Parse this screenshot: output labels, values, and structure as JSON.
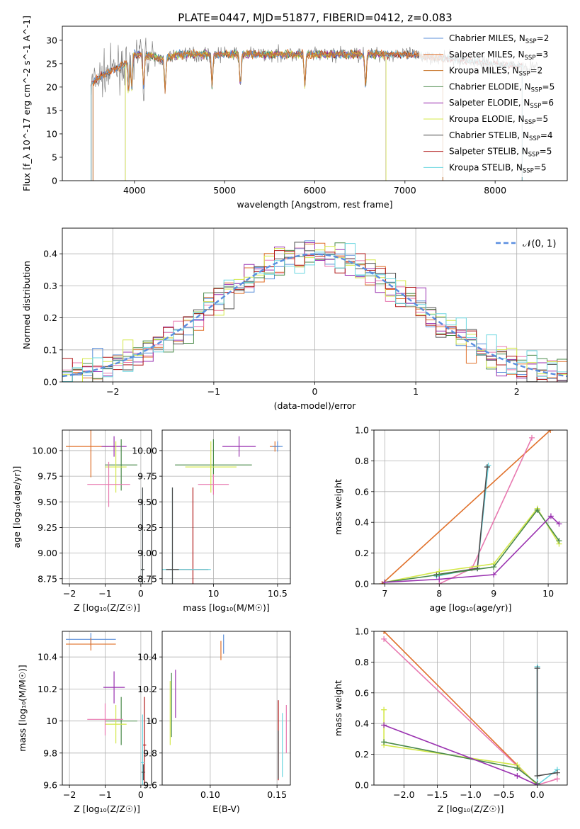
{
  "figure_title": "PLATE=0447, MJD=51877, FIBERID=0412, z=0.083",
  "colors": {
    "chabrier_miles": "#5b8fd9",
    "salpeter_miles": "#e0702a",
    "kroupa_miles": "#c8762b",
    "chabrier_elodie": "#4a8a4a",
    "salpeter_elodie": "#9a32b0",
    "kroupa_elodie": "#d4e84a",
    "chabrier_stelib": "#4d4d4d",
    "salpeter_stelib": "#b01818",
    "kroupa_stelib": "#6ad6e0",
    "pink": "#e879b0",
    "lime": "#a8e060",
    "normal": "#5a8ee0",
    "grid": "#b0b0b0"
  },
  "chart_data": [
    {
      "type": "line",
      "title": "PLATE=0447, MJD=51877, FIBERID=0412, z=0.083",
      "xlabel": "wavelength [Angstrom, rest frame]",
      "ylabel": "Flux [f_λ 10^-17 erg cm^-2 s^-1 A^-1]",
      "xlim": [
        3200,
        8800
      ],
      "ylim": [
        0,
        33
      ],
      "xticks": [
        4000,
        5000,
        6000,
        7000,
        8000
      ],
      "yticks": [
        0,
        5,
        10,
        15,
        20,
        25,
        30
      ],
      "grid": false,
      "legend_position": "top-right",
      "legend": [
        {
          "label": "Chabrier MILES, N",
          "sub": "SSP",
          "n": "=2",
          "color_key": "chabrier_miles"
        },
        {
          "label": "Salpeter MILES, N",
          "sub": "SSP",
          "n": "=3",
          "color_key": "salpeter_miles"
        },
        {
          "label": "Kroupa MILES, N",
          "sub": "SSP",
          "n": "=2",
          "color_key": "kroupa_miles"
        },
        {
          "label": "Chabrier ELODIE, N",
          "sub": "SSP",
          "n": "=5",
          "color_key": "chabrier_elodie"
        },
        {
          "label": "Salpeter ELODIE, N",
          "sub": "SSP",
          "n": "=6",
          "color_key": "salpeter_elodie"
        },
        {
          "label": "Kroupa ELODIE, N",
          "sub": "SSP",
          "n": "=5",
          "color_key": "kroupa_elodie"
        },
        {
          "label": "Chabrier STELIB, N",
          "sub": "SSP",
          "n": "=4",
          "color_key": "chabrier_stelib"
        },
        {
          "label": "Salpeter STELIB, N",
          "sub": "SSP",
          "n": "=5",
          "color_key": "salpeter_stelib"
        },
        {
          "label": "Kroupa STELIB, N",
          "sub": "SSP",
          "n": "=5",
          "color_key": "kroupa_stelib"
        }
      ],
      "spectrum_envelope": {
        "x": [
          3500,
          3600,
          3700,
          3800,
          3900,
          4000,
          4100,
          4300,
          4500,
          5000,
          5500,
          6000,
          6500,
          7000,
          7500,
          8000,
          8500
        ],
        "y": [
          20,
          22,
          23,
          24,
          25,
          27,
          27,
          26,
          27,
          27,
          27,
          27,
          27,
          27,
          26,
          25,
          24
        ]
      },
      "model_cutoffs": {
        "miles_min": 3540,
        "miles_max": 7420,
        "elodie_min": 3900,
        "elodie_max": 6790,
        "stelib_min": 3200,
        "stelib_max": 8800
      }
    },
    {
      "type": "line",
      "xlabel": "(data-model)/error",
      "ylabel": "Normed distribution",
      "xlim": [
        -2.5,
        2.5
      ],
      "ylim": [
        0,
        0.48
      ],
      "xticks": [
        -2,
        -1,
        0,
        1,
        2
      ],
      "yticks": [
        0.0,
        0.1,
        0.2,
        0.3,
        0.4
      ],
      "grid": true,
      "legend_position": "top-right",
      "legend": [
        {
          "label": "𝒩(0, 1)",
          "style": "dashed"
        }
      ],
      "series": [
        {
          "name": "Normal",
          "mean": 0,
          "sigma": 1
        }
      ],
      "histogram_bin_width": 0.1
    },
    {
      "type": "scatter",
      "xlabel": "Z [log₁₀(Z/Z☉)]",
      "ylabel": "age  [log₁₀(age/yr)]",
      "xlim": [
        -2.2,
        0.3
      ],
      "ylim": [
        8.7,
        10.2
      ],
      "xticks": [
        -2,
        -1,
        0
      ],
      "yticks": [
        8.75,
        9.0,
        9.25,
        9.5,
        9.75,
        10.0
      ],
      "ytick_labels": [
        "8.75",
        "9.00",
        "9.25",
        "9.50",
        "9.75",
        "10.00"
      ],
      "errorbars": [
        {
          "color_key": "salpeter_miles",
          "x": -1.4,
          "xerr": 0.7,
          "y": 10.04,
          "yerr": 0.3
        },
        {
          "color_key": "salpeter_elodie",
          "x": -0.75,
          "xerr": 0.35,
          "y": 10.04,
          "yerr": 0.1
        },
        {
          "color_key": "chabrier_elodie",
          "x": -0.55,
          "xerr": 0.45,
          "y": 9.86,
          "yerr": 0.25
        },
        {
          "color_key": "kroupa_elodie",
          "x": -0.7,
          "xerr": 0.3,
          "y": 9.84,
          "yerr": 0.25
        },
        {
          "color_key": "pink",
          "x": -0.9,
          "xerr": 0.6,
          "y": 9.67,
          "yerr": 0.22
        },
        {
          "color_key": "kroupa_stelib",
          "x": 0.05,
          "xerr": 0.05,
          "y": 8.84,
          "yerr": 0.8
        },
        {
          "color_key": "chabrier_stelib",
          "x": 0.05,
          "xerr": 0.05,
          "y": 8.84,
          "yerr": 0.8
        }
      ]
    },
    {
      "type": "scatter",
      "xlabel": "mass [log₁₀(M/M☉)]",
      "ylabel": "",
      "xlim": [
        9.6,
        10.6
      ],
      "ylim": [
        8.7,
        10.2
      ],
      "xticks": [
        10.0,
        10.5
      ],
      "yticks": [
        8.75,
        9.0,
        9.25,
        9.5,
        9.75,
        10.0
      ],
      "ytick_labels": [
        "8.75",
        "9.00",
        "9.25",
        "9.50",
        "9.75",
        "10.00"
      ],
      "errorbars": [
        {
          "color_key": "salpeter_miles",
          "x": 10.48,
          "xerr": 0.04,
          "y": 10.04,
          "yerr": 0.05
        },
        {
          "color_key": "chabrier_miles",
          "x": 10.5,
          "xerr": 0.04,
          "y": 10.04,
          "yerr": 0.05
        },
        {
          "color_key": "salpeter_elodie",
          "x": 10.2,
          "xerr": 0.13,
          "y": 10.04,
          "yerr": 0.1
        },
        {
          "color_key": "chabrier_elodie",
          "x": 10.0,
          "xerr": 0.3,
          "y": 9.86,
          "yerr": 0.25
        },
        {
          "color_key": "kroupa_elodie",
          "x": 9.98,
          "xerr": 0.2,
          "y": 9.84,
          "yerr": 0.25
        },
        {
          "color_key": "pink",
          "x": 10.0,
          "xerr": 0.12,
          "y": 9.67,
          "yerr": 0.1
        },
        {
          "color_key": "salpeter_stelib",
          "x": 9.84,
          "xerr": 0.12,
          "y": 8.84,
          "yerr": 0.8
        },
        {
          "color_key": "kroupa_stelib",
          "x": 9.68,
          "xerr": 0.3,
          "y": 8.84,
          "yerr": 0.8
        },
        {
          "color_key": "chabrier_stelib",
          "x": 9.68,
          "xerr": 0.05,
          "y": 8.84,
          "yerr": 0.8
        }
      ]
    },
    {
      "type": "line",
      "xlabel": "age  [log₁₀(age/yr)]",
      "ylabel": "mass weight",
      "xlim": [
        6.8,
        10.35
      ],
      "ylim": [
        0,
        1
      ],
      "xticks": [
        7,
        8,
        9,
        10
      ],
      "yticks": [
        0.0,
        0.2,
        0.4,
        0.6,
        0.8,
        1.0
      ],
      "grid": true,
      "series": [
        {
          "color_key": "salpeter_miles",
          "x": [
            6.95,
            10.04
          ],
          "y": [
            0.0,
            1.0
          ]
        },
        {
          "color_key": "pink",
          "x": [
            8.0,
            8.6,
            9.7
          ],
          "y": [
            0.0,
            0.1,
            0.95
          ]
        },
        {
          "color_key": "kroupa_stelib",
          "x": [
            7.95,
            8.7,
            8.9
          ],
          "y": [
            0.05,
            0.1,
            0.77
          ]
        },
        {
          "color_key": "chabrier_stelib",
          "x": [
            7.95,
            8.7,
            8.88
          ],
          "y": [
            0.06,
            0.1,
            0.76
          ]
        },
        {
          "color_key": "kroupa_elodie",
          "x": [
            7.0,
            8.0,
            9.0,
            9.8,
            10.2
          ],
          "y": [
            0.01,
            0.08,
            0.13,
            0.49,
            0.26
          ]
        },
        {
          "color_key": "chabrier_elodie",
          "x": [
            7.0,
            8.0,
            9.0,
            9.8,
            10.2
          ],
          "y": [
            0.01,
            0.06,
            0.11,
            0.48,
            0.28
          ]
        },
        {
          "color_key": "salpeter_elodie",
          "x": [
            7.0,
            8.0,
            9.0,
            10.05,
            10.2
          ],
          "y": [
            0.01,
            0.03,
            0.06,
            0.44,
            0.39
          ]
        }
      ]
    },
    {
      "type": "scatter",
      "xlabel": "Z [log₁₀(Z/Z☉)]",
      "ylabel": "mass [log₁₀(M/M☉)]",
      "xlim": [
        -2.2,
        0.3
      ],
      "ylim": [
        9.6,
        10.56
      ],
      "xticks": [
        -2,
        -1,
        0
      ],
      "yticks": [
        9.6,
        9.8,
        10.0,
        10.2,
        10.4
      ],
      "errorbars": [
        {
          "color_key": "chabrier_miles",
          "x": -1.4,
          "xerr": 0.7,
          "y": 10.51,
          "yerr": 0.04
        },
        {
          "color_key": "salpeter_miles",
          "x": -1.4,
          "xerr": 0.7,
          "y": 10.48,
          "yerr": 0.04
        },
        {
          "color_key": "salpeter_elodie",
          "x": -0.75,
          "xerr": 0.3,
          "y": 10.21,
          "yerr": 0.1
        },
        {
          "color_key": "chabrier_elodie",
          "x": -0.55,
          "xerr": 0.45,
          "y": 10.0,
          "yerr": 0.15
        },
        {
          "color_key": "kroupa_elodie",
          "x": -0.7,
          "xerr": 0.3,
          "y": 9.98,
          "yerr": 0.12
        },
        {
          "color_key": "pink",
          "x": -1.0,
          "xerr": 0.5,
          "y": 10.01,
          "yerr": 0.1
        },
        {
          "color_key": "salpeter_stelib",
          "x": 0.1,
          "xerr": 0.05,
          "y": 9.85,
          "yerr": 0.3
        },
        {
          "color_key": "kroupa_stelib",
          "x": 0.05,
          "xerr": 0.05,
          "y": 9.74,
          "yerr": 0.3
        },
        {
          "color_key": "chabrier_stelib",
          "x": 0.07,
          "xerr": 0.05,
          "y": 9.68,
          "yerr": 0.05
        }
      ]
    },
    {
      "type": "scatter",
      "xlabel": "E(B-V)",
      "ylabel": "",
      "xlim": [
        0.064,
        0.16
      ],
      "ylim": [
        9.6,
        10.56
      ],
      "xticks": [
        0.1,
        0.15
      ],
      "xtick_labels": [
        "0.10",
        "0.15"
      ],
      "yticks": [
        9.6,
        9.8,
        10.0,
        10.2,
        10.4
      ],
      "errorbars": [
        {
          "color_key": "chabrier_miles",
          "x": 0.11,
          "y": 10.48,
          "yerr": 0.06
        },
        {
          "color_key": "salpeter_miles",
          "x": 0.108,
          "y": 10.44,
          "yerr": 0.06
        },
        {
          "color_key": "salpeter_elodie",
          "x": 0.074,
          "y": 10.17,
          "yerr": 0.15
        },
        {
          "color_key": "chabrier_elodie",
          "x": 0.071,
          "y": 10.1,
          "yerr": 0.2
        },
        {
          "color_key": "kroupa_elodie",
          "x": 0.07,
          "y": 10.05,
          "yerr": 0.2
        },
        {
          "color_key": "salpeter_stelib",
          "x": 0.151,
          "y": 9.88,
          "yerr": 0.25
        },
        {
          "color_key": "kroupa_stelib",
          "x": 0.154,
          "y": 9.85,
          "yerr": 0.2
        },
        {
          "color_key": "chabrier_stelib",
          "x": 0.151,
          "y": 9.79,
          "yerr": 0.15
        },
        {
          "color_key": "pink",
          "x": 0.157,
          "y": 9.95,
          "yerr": 0.15
        }
      ]
    },
    {
      "type": "line",
      "xlabel": "Z [log₁₀(Z/Z☉)]",
      "ylabel": "mass weight",
      "xlim": [
        -2.45,
        0.45
      ],
      "ylim": [
        0,
        1
      ],
      "xticks": [
        -2.0,
        -1.5,
        -1.0,
        -0.5,
        0.0
      ],
      "xtick_labels": [
        "−2.0",
        "−1.5",
        "−1.0",
        "−0.5",
        "0.0"
      ],
      "yticks": [
        0.0,
        0.2,
        0.4,
        0.6,
        0.8,
        1.0
      ],
      "grid": true,
      "series": [
        {
          "color_key": "salpeter_miles",
          "x": [
            -2.3,
            0.0
          ],
          "y": [
            1.0,
            0.0
          ]
        },
        {
          "color_key": "pink",
          "x": [
            -2.3,
            0.0,
            0.3
          ],
          "y": [
            0.95,
            0.0,
            0.04
          ]
        },
        {
          "color_key": "kroupa_stelib",
          "x": [
            0.0,
            0.0,
            0.3
          ],
          "y": [
            0.77,
            0.0,
            0.1
          ]
        },
        {
          "color_key": "chabrier_stelib",
          "x": [
            0.0,
            0.0,
            0.3
          ],
          "y": [
            0.76,
            0.06,
            0.08
          ]
        },
        {
          "color_key": "kroupa_elodie",
          "x": [
            -2.3,
            -2.3,
            -0.3,
            0.0
          ],
          "y": [
            0.49,
            0.26,
            0.13,
            0.0
          ]
        },
        {
          "color_key": "chabrier_elodie",
          "x": [
            -2.3,
            -0.3,
            0.0
          ],
          "y": [
            0.28,
            0.11,
            0.01
          ]
        },
        {
          "color_key": "salpeter_elodie",
          "x": [
            -2.3,
            -0.3,
            0.0
          ],
          "y": [
            0.39,
            0.06,
            0.0
          ]
        }
      ]
    }
  ]
}
